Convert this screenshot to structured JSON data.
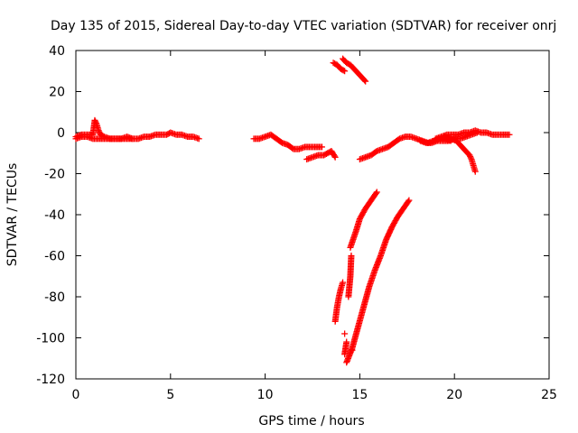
{
  "chart_data": {
    "type": "scatter",
    "title": "Day 135 of 2015, Sidereal Day-to-day VTEC variation (SDTVAR) for receiver onrj",
    "xlabel": "GPS time / hours",
    "ylabel": "SDTVAR / TECUs",
    "xlim": [
      0,
      25
    ],
    "ylim": [
      -120,
      40
    ],
    "xticks": [
      0,
      5,
      10,
      15,
      20,
      25
    ],
    "yticks": [
      -120,
      -100,
      -80,
      -60,
      -40,
      -20,
      0,
      20,
      40
    ],
    "grid": false,
    "legend": "none",
    "marker": "+",
    "color": "#ff0000",
    "series": [
      {
        "x": [
          0.0,
          0.3,
          0.6,
          0.9,
          1.0,
          1.1,
          1.2,
          1.3,
          1.5,
          1.8,
          2.1,
          2.4,
          2.7,
          3.0,
          3.3,
          3.6,
          3.9,
          4.2,
          4.5,
          4.8,
          5.0,
          5.3,
          5.6,
          5.9,
          6.2,
          6.5
        ],
        "y": [
          -2,
          -1,
          -1,
          -1,
          6,
          4,
          1,
          -1,
          -2,
          -3,
          -3,
          -3,
          -2,
          -3,
          -3,
          -2,
          -2,
          -1,
          -1,
          -1,
          0,
          -1,
          -1,
          -2,
          -2,
          -3
        ]
      },
      {
        "x": [
          0.0,
          0.3,
          0.6,
          0.9,
          1.2,
          1.5,
          1.8,
          2.1,
          2.4,
          2.7,
          3.0
        ],
        "y": [
          -3,
          -2,
          -2,
          -3,
          -3,
          -3,
          -3,
          -3,
          -3,
          -3,
          -3
        ]
      },
      {
        "x": [
          9.4,
          9.7,
          10.0,
          10.3,
          10.6,
          10.9,
          11.2,
          11.5,
          11.8,
          12.1,
          12.4,
          12.7,
          13.0
        ],
        "y": [
          -3,
          -3,
          -2,
          -1,
          -3,
          -5,
          -6,
          -8,
          -8,
          -7,
          -7,
          -7,
          -7
        ]
      },
      {
        "x": [
          12.2,
          12.5,
          12.8,
          13.1,
          13.3,
          13.5,
          13.7
        ],
        "y": [
          -13,
          -12,
          -11,
          -11,
          -10,
          -9,
          -12
        ]
      },
      {
        "x": [
          13.6,
          13.8,
          14.0,
          14.2
        ],
        "y": [
          34,
          33,
          31,
          30
        ]
      },
      {
        "x": [
          14.1,
          14.3,
          14.5,
          14.7,
          14.9,
          15.1,
          15.3
        ],
        "y": [
          36,
          34,
          33,
          31,
          29,
          27,
          25
        ]
      },
      {
        "x": [
          13.7,
          13.8,
          13.9,
          14.0,
          14.1,
          14.2
        ],
        "y": [
          -92,
          -85,
          -80,
          -76,
          -73,
          -98
        ]
      },
      {
        "x": [
          14.2,
          14.3,
          14.4,
          14.5,
          14.55,
          14.6
        ],
        "y": [
          -108,
          -102,
          -80,
          -70,
          -60,
          -106
        ]
      },
      {
        "x": [
          14.5,
          14.8,
          15.0,
          15.3,
          15.6,
          15.9
        ],
        "y": [
          -56,
          -48,
          -42,
          -37,
          -33,
          -29
        ]
      },
      {
        "x": [
          14.3,
          14.6,
          14.9,
          15.2,
          15.5,
          15.8,
          16.1,
          16.4,
          16.7,
          17.0,
          17.3,
          17.6
        ],
        "y": [
          -112,
          -105,
          -95,
          -85,
          -75,
          -67,
          -60,
          -52,
          -46,
          -41,
          -37,
          -33
        ]
      },
      {
        "x": [
          15.0,
          15.3,
          15.6,
          15.9,
          16.2,
          16.5,
          16.8,
          17.1,
          17.4,
          17.7,
          18.0,
          18.3,
          18.6,
          18.9,
          19.2,
          19.5,
          19.8
        ],
        "y": [
          -13,
          -12,
          -11,
          -9,
          -8,
          -7,
          -5,
          -3,
          -2,
          -2,
          -3,
          -4,
          -5,
          -4,
          -3,
          -3,
          -4
        ]
      },
      {
        "x": [
          19.0,
          19.3,
          19.6,
          19.9,
          20.2,
          20.5,
          20.8,
          21.1,
          21.4,
          21.7,
          22.0,
          22.3,
          22.6,
          22.9
        ],
        "y": [
          -3,
          -2,
          -1,
          -1,
          -1,
          0,
          0,
          1,
          0,
          0,
          -1,
          -1,
          -1,
          -1
        ]
      },
      {
        "x": [
          19.5,
          19.8,
          20.1,
          20.4,
          20.6,
          20.8,
          20.9,
          21.0,
          21.1
        ],
        "y": [
          -2,
          -3,
          -4,
          -7,
          -9,
          -11,
          -13,
          -16,
          -19
        ]
      },
      {
        "x": [
          18.2,
          18.5,
          18.8,
          19.1,
          19.4,
          19.7,
          20.0,
          20.3,
          20.6,
          20.9,
          21.2
        ],
        "y": [
          -4,
          -5,
          -5,
          -4,
          -4,
          -4,
          -3,
          -3,
          -2,
          -1,
          0
        ]
      }
    ]
  }
}
